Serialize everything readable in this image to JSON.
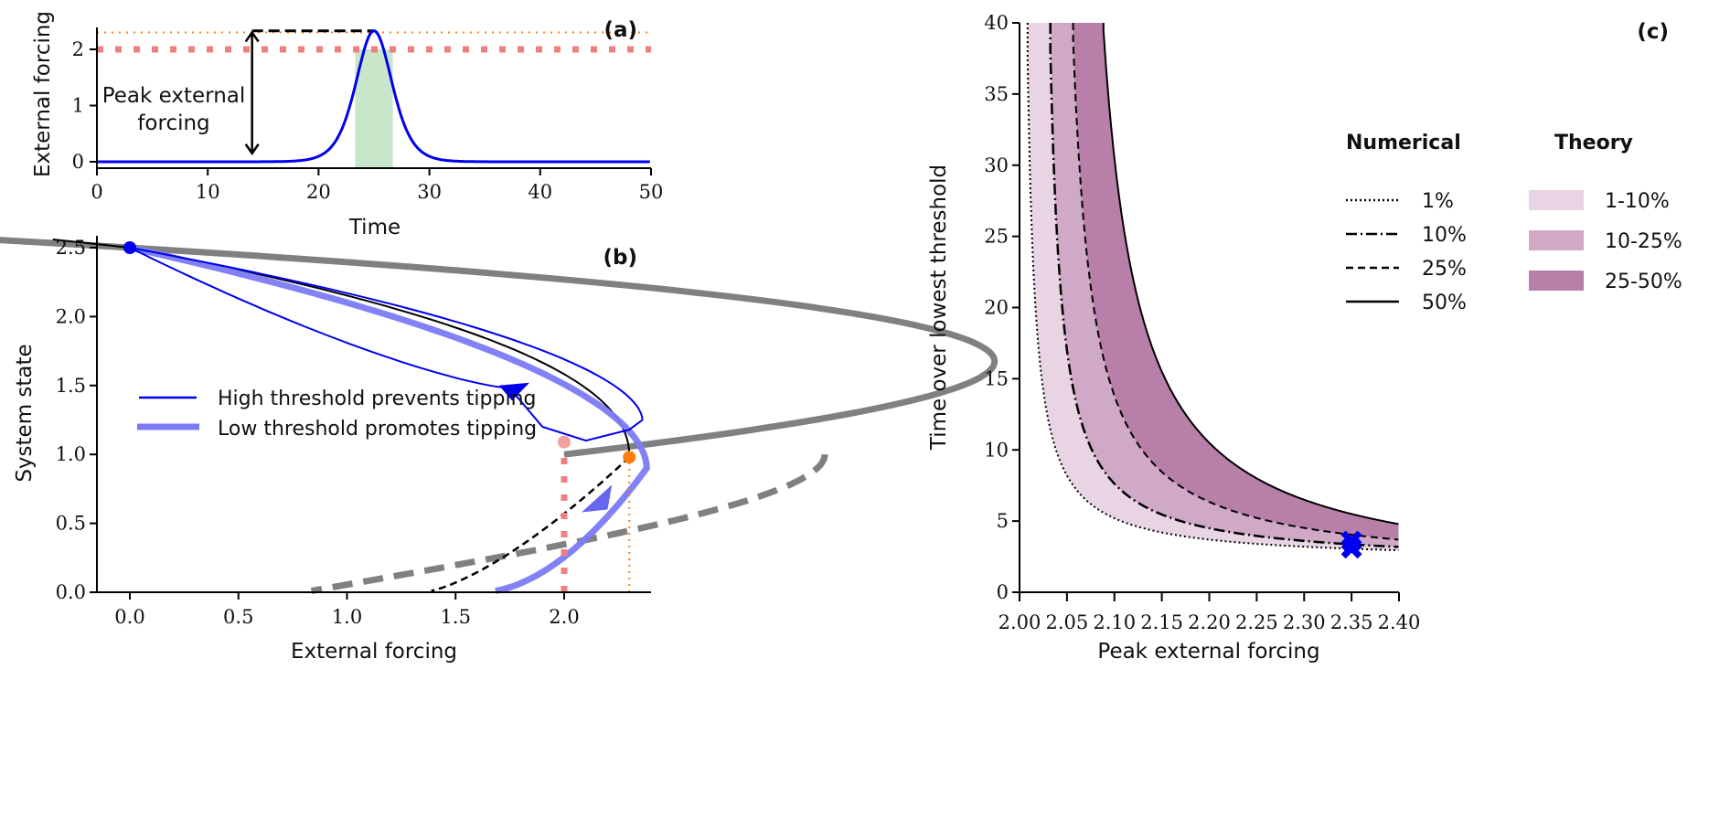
{
  "chart_data": [
    {
      "panel": "(a)",
      "type": "line",
      "xlabel": "Time",
      "ylabel": "External forcing",
      "xlim": [
        0,
        50
      ],
      "ylim": [
        -0.1,
        2.5
      ],
      "xticks": [
        "0",
        "10",
        "20",
        "30",
        "40",
        "50"
      ],
      "yticks": [
        "0",
        "1",
        "2"
      ],
      "series": [
        {
          "name": "forcing pulse",
          "color": "#0000ee",
          "peak_time": 25,
          "peak_value": 2.33,
          "width": 3.5
        }
      ],
      "reference_lines": [
        {
          "name": "low threshold",
          "y": 2.0,
          "color": "#f08080",
          "style": "dotted-thick"
        },
        {
          "name": "high threshold",
          "y": 2.3,
          "color": "#ff7f0e",
          "style": "dotted-thin"
        },
        {
          "name": "peak marker",
          "y": 2.33,
          "x_range": [
            14,
            25
          ],
          "color": "#000000",
          "style": "dashed"
        }
      ],
      "shaded_region": {
        "x_range": [
          23.3,
          26.7
        ],
        "y_range": [
          0,
          2.0
        ],
        "color": "#c8e6c9"
      },
      "annotation": {
        "text_line1": "Peak external",
        "text_line2": "forcing",
        "arrow_x": 14,
        "arrow_y": [
          0.15,
          2.3
        ]
      }
    },
    {
      "panel": "(b)",
      "type": "line",
      "xlabel": "External forcing",
      "ylabel": "System state",
      "xlim": [
        -0.2,
        2.4
      ],
      "ylim": [
        0.0,
        2.6
      ],
      "xticks": [
        "0.0",
        "0.5",
        "1.0",
        "1.5",
        "2.0"
      ],
      "yticks": [
        "0.0",
        "0.5",
        "1.0",
        "1.5",
        "2.0",
        "2.5"
      ],
      "legend": [
        {
          "label": "High threshold prevents tipping",
          "color": "#0000ee",
          "style": "thin"
        },
        {
          "label": "Low threshold promotes tipping",
          "color": "#7b7bf5",
          "style": "thick"
        }
      ],
      "markers": [
        {
          "name": "start",
          "x": 0.0,
          "y": 2.5,
          "color": "#0000ee"
        },
        {
          "name": "low fold",
          "x": 2.0,
          "y": 1.09,
          "color": "#f08080"
        },
        {
          "name": "high fold",
          "x": 2.3,
          "y": 0.98,
          "color": "#ff7f0e"
        }
      ],
      "vertical_lines": [
        {
          "x": 2.0,
          "y_range": [
            0,
            1.0
          ],
          "color": "#f08080",
          "style": "dotted-thick"
        },
        {
          "x": 2.3,
          "y_range": [
            0,
            0.95
          ],
          "color": "#ff7f0e",
          "style": "dotted-thin"
        }
      ]
    },
    {
      "panel": "(c)",
      "type": "area",
      "xlabel": "Peak external forcing",
      "ylabel": "Time over lowest threshold",
      "xlim": [
        2.0,
        2.4
      ],
      "ylim": [
        0,
        40
      ],
      "xticks": [
        "2.00",
        "2.05",
        "2.10",
        "2.15",
        "2.20",
        "2.25",
        "2.30",
        "2.35",
        "2.40"
      ],
      "yticks": [
        "0",
        "5",
        "10",
        "15",
        "20",
        "25",
        "30",
        "35",
        "40"
      ],
      "legend_numerical": {
        "title": "Numerical",
        "items": [
          {
            "label": "1%",
            "style": "dotted"
          },
          {
            "label": "10%",
            "style": "dashdot"
          },
          {
            "label": "25%",
            "style": "dashed"
          },
          {
            "label": "50%",
            "style": "solid"
          }
        ]
      },
      "legend_theory": {
        "title": "Theory",
        "items": [
          {
            "label": "1-10%",
            "color": "#e8d4e3"
          },
          {
            "label": "10-25%",
            "color": "#d0a9c7"
          },
          {
            "label": "25-50%",
            "color": "#b880a8"
          }
        ]
      },
      "curves": [
        {
          "name": "1%",
          "x0": 2.0,
          "k": 0.3,
          "style": "dotted"
        },
        {
          "name": "10%",
          "x0": 2.02,
          "k": 0.45,
          "style": "dashdot"
        },
        {
          "name": "25%",
          "x0": 2.035,
          "k": 0.8,
          "style": "dashed"
        },
        {
          "name": "50%",
          "x0": 2.05,
          "k": 1.5,
          "style": "solid"
        }
      ],
      "markers": [
        {
          "name": "X marker",
          "x": 2.35,
          "y": 3.6,
          "color": "#0000ee",
          "shape": "x"
        },
        {
          "name": "X marker",
          "x": 2.35,
          "y": 3.1,
          "color": "#0000ee",
          "shape": "x"
        }
      ]
    }
  ]
}
